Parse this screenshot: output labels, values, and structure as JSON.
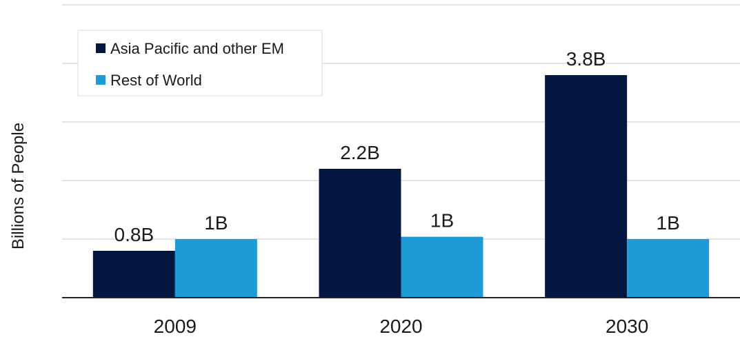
{
  "chart_data": {
    "type": "bar",
    "categories": [
      "2009",
      "2020",
      "2030"
    ],
    "series": [
      {
        "name": "Asia Pacific and other EM",
        "values": [
          0.8,
          2.2,
          3.8
        ],
        "labels": [
          "0.8B",
          "2.2B",
          "3.8B"
        ],
        "color": "#021640"
      },
      {
        "name": "Rest of World",
        "values": [
          1.0,
          1.04,
          1.0
        ],
        "labels": [
          "1B",
          "1B",
          "1B"
        ],
        "color": "#1e9bd7"
      }
    ],
    "ylabel": "Billions of People",
    "ylim": [
      0,
      5
    ],
    "grid": true,
    "legend_position": "top-left"
  }
}
